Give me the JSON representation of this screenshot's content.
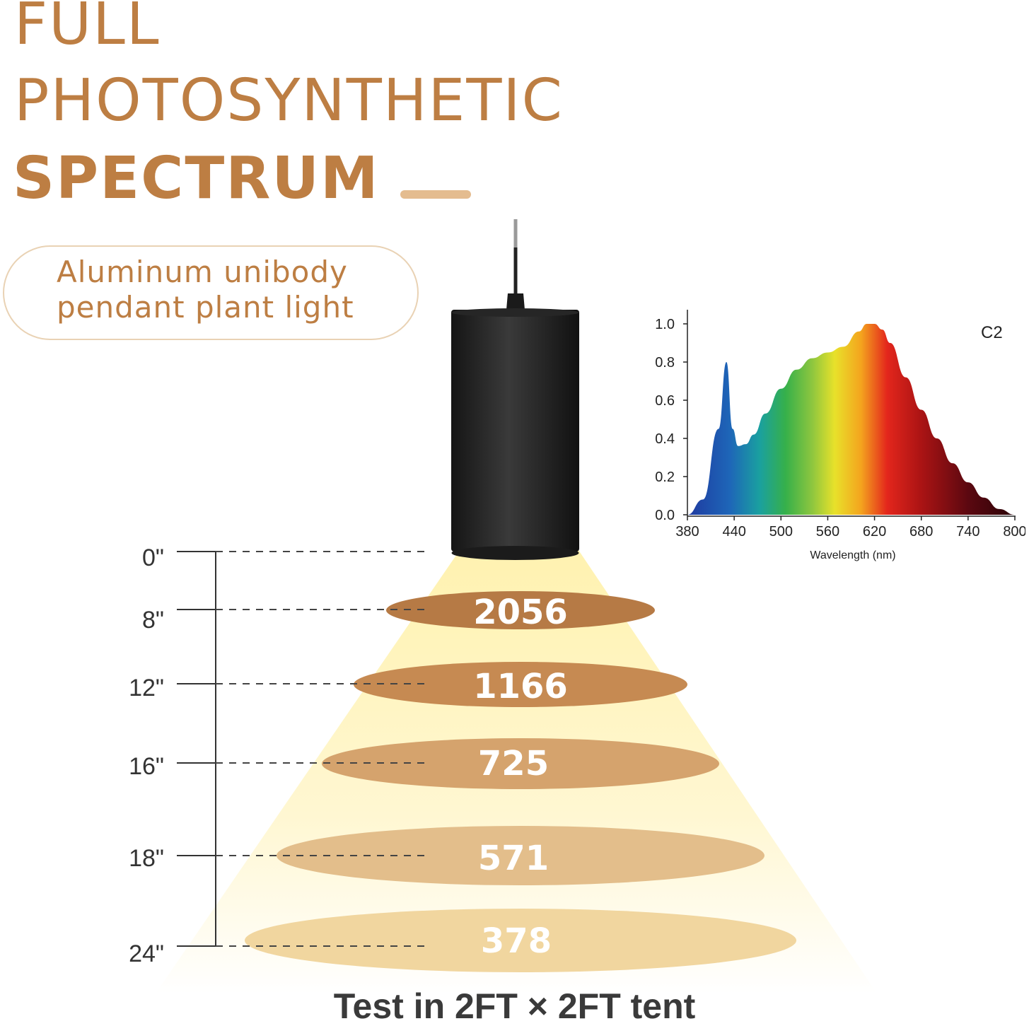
{
  "headline": {
    "line1": "FULL",
    "line2": "PHOTOSYNTHETIC",
    "line3": "SPECTRUM"
  },
  "colors": {
    "brand": "#bd7e43",
    "accent_light": "#e4bc8f",
    "beam": "#fff4bf"
  },
  "feature": {
    "line1": "Aluminum unibody",
    "line2": "pendant plant light"
  },
  "spectrum": {
    "label": "C2",
    "xlabel": "Wavelength (nm)",
    "xticks": [
      "380",
      "440",
      "500",
      "560",
      "620",
      "680",
      "740",
      "800"
    ],
    "yticks": [
      "1.0",
      "0.8",
      "0.6",
      "0.4",
      "0.2",
      "0.0"
    ]
  },
  "distances": [
    "0\"",
    "8\"",
    "12\"",
    "16\"",
    "18\"",
    "24\""
  ],
  "ppfd_values": [
    "2056",
    "1166",
    "725",
    "571",
    "378"
  ],
  "footer": "Test in 2FT × 2FT tent",
  "chart_data": {
    "type": "area",
    "title": "",
    "label": "C2",
    "xlabel": "Wavelength (nm)",
    "ylabel": "",
    "xlim": [
      380,
      800
    ],
    "ylim": [
      0,
      1.0
    ],
    "x": [
      380,
      400,
      420,
      430,
      438,
      445,
      455,
      465,
      480,
      500,
      520,
      540,
      560,
      580,
      600,
      610,
      620,
      630,
      640,
      660,
      680,
      700,
      720,
      740,
      760,
      780,
      800
    ],
    "y": [
      0.0,
      0.08,
      0.45,
      0.8,
      0.45,
      0.36,
      0.37,
      0.42,
      0.53,
      0.66,
      0.76,
      0.82,
      0.85,
      0.88,
      0.96,
      1.0,
      1.0,
      0.97,
      0.9,
      0.72,
      0.55,
      0.4,
      0.27,
      0.17,
      0.09,
      0.03,
      0.0
    ],
    "grid": false,
    "legend": "top-right"
  }
}
